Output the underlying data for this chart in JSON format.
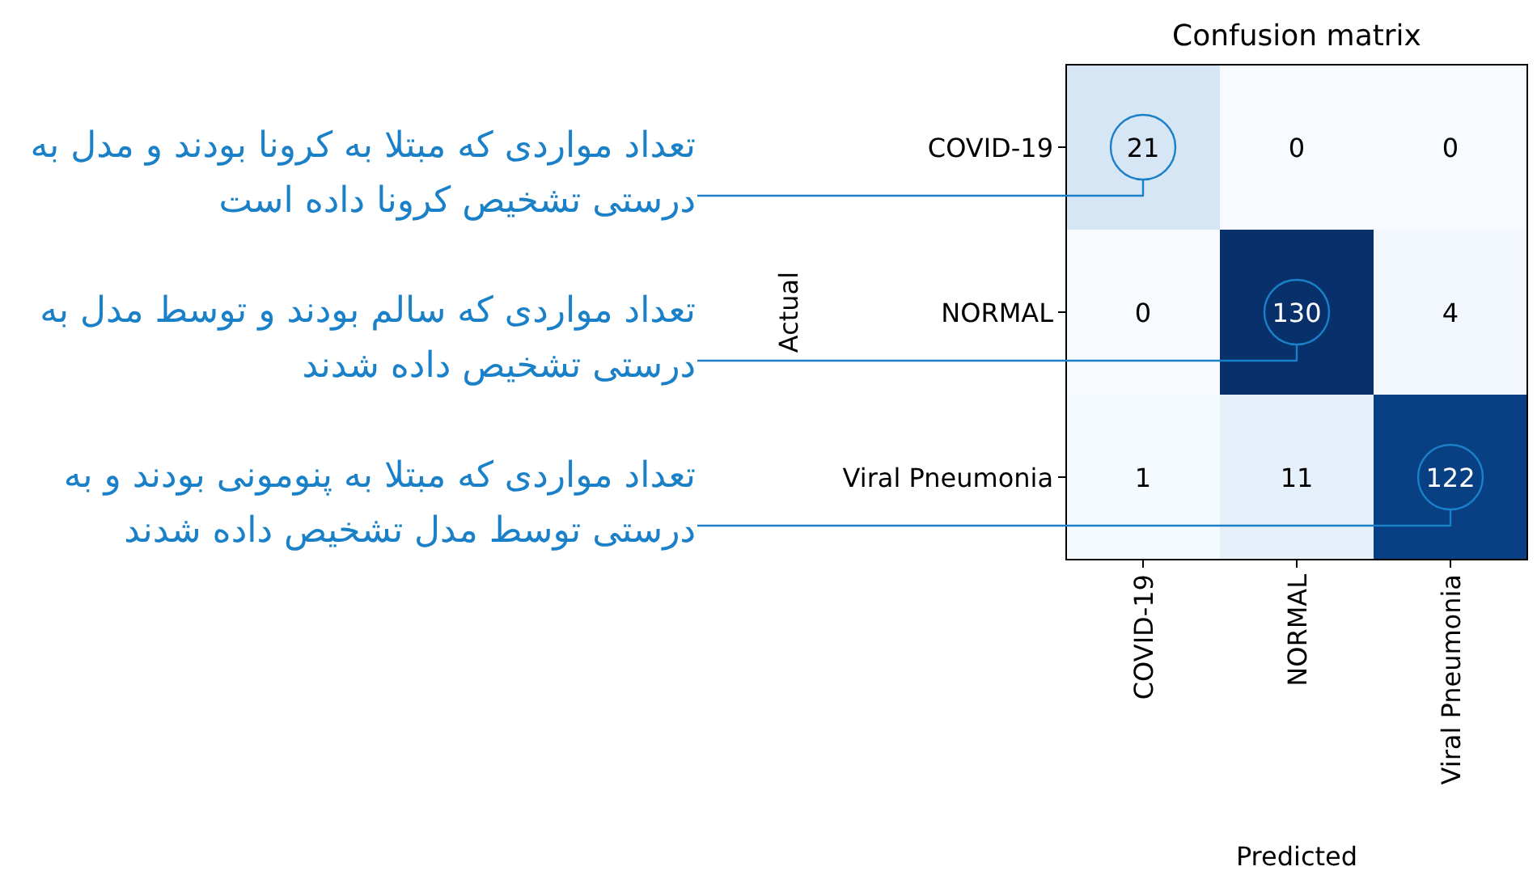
{
  "chart_data": {
    "type": "heatmap",
    "title": "Confusion matrix",
    "xlabel": "Predicted",
    "ylabel": "Actual",
    "categories": [
      "COVID-19",
      "NORMAL",
      "Viral Pneumonia"
    ],
    "y_categories": [
      "COVID-19",
      "NORMAL",
      "Viral Pneumonia"
    ],
    "cells": [
      [
        21,
        0,
        0
      ],
      [
        0,
        130,
        4
      ],
      [
        1,
        11,
        122
      ]
    ],
    "data_labels": true,
    "annotations": [
      "تعداد مواردی که مبتلا به کرونا بودند و مدل به درستی تشخیص کرونا داده است",
      "تعداد مواردی که سالم بودند و توسط مدل به درستی تشخیص داده شدند",
      "تعداد مواردی که مبتلا به پنومونی بودند و به درستی توسط مدل تشخیص داده شدند"
    ]
  }
}
